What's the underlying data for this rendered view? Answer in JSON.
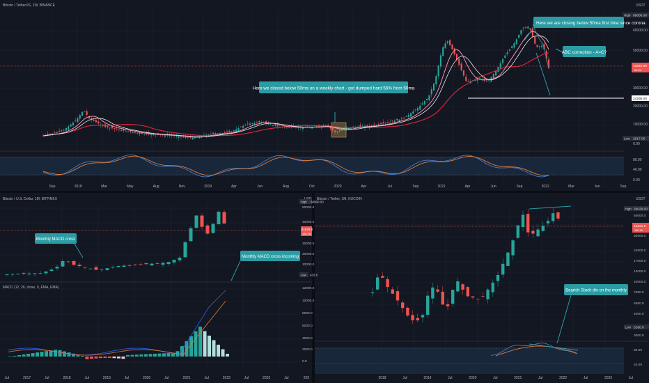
{
  "colors": {
    "background": "#131722",
    "grid": "#1e2230",
    "up": "#26a69a",
    "down": "#ef5350",
    "ma_red": "#d6253b",
    "ma_pink": "#f48fb1",
    "ma_white": "#e8e8e8",
    "callout": "#2b9ca3",
    "stoch_blue": "#4a78c4",
    "stoch_orange": "#e07b39",
    "macd_blue": "#2962ff",
    "band": "#1b2a40"
  },
  "top": {
    "title": "Bitcoin / TetherUS, 1W, BINANCE",
    "currency": "USDT",
    "price_labels": [
      "60000.00",
      "50000.00",
      "30000.00",
      "20000.00",
      "10000.00",
      "0.00"
    ],
    "high_tag": "High",
    "high_value": "69000.00",
    "current_price": "41640.09",
    "current_sub": "2d 0h",
    "level_value": "24295.00",
    "low_tag": "Low",
    "low_value": "2817.00",
    "osc_labels": [
      "80.00",
      "40.00",
      "0.00"
    ],
    "x_labels": [
      "Sep",
      "2018",
      "Mar",
      "May",
      "Aug",
      "Nov",
      "2019",
      "Apr",
      "Jun",
      "Aug",
      "Oct",
      "2020",
      "Apr",
      "Jul",
      "Sep",
      "2021",
      "Apr",
      "Jun",
      "Sep",
      "2022",
      "Mar",
      "Jun",
      "Sep"
    ],
    "callout_1": "Here we closed below 50ma on a weekly chart - got dumped hard 56% from 50ma",
    "callout_2": "Here we are closing below 50ma first time since corona",
    "callout_3": "ABC correction - A=C?"
  },
  "bottom_left": {
    "title": "Bitcoin / U.S. Dollar, 1M, BITFINEX",
    "currency": "USD",
    "high_tag": "High",
    "high_value": "68990.00",
    "price_labels": [
      "50000.0",
      "40000.0",
      "30000.0",
      "20000.0",
      "10000.0"
    ],
    "current_price": "41678.0",
    "current_sub": "18d 0h",
    "low_tag": "Low",
    "low_value": "433.0",
    "macd_title": "MACD (12, 26, close, 9, EMA, EMA)",
    "macd_labels": [
      "12000.0",
      "10000.0",
      "8000.0",
      "6000.0",
      "4000.0",
      "2000.0",
      "0.0"
    ],
    "x_labels": [
      "Jul",
      "2017",
      "Jul",
      "2018",
      "Jul",
      "2019",
      "Jul",
      "2020",
      "Jul",
      "2021",
      "Jul",
      "2022",
      "Jul",
      "2023",
      "Jul",
      "202"
    ],
    "callout_1": "Monthly MACD cross",
    "callout_2": "Monthly MACD cross incoming"
  },
  "bottom_right": {
    "title": "Bitcoin / Tether, 1M, KUCOIN",
    "currency": "USDT",
    "high_tag": "High",
    "high_value": "69028.00",
    "price_labels": [
      "50000.0",
      "40000.0",
      "30000.0",
      "23000.0",
      "17000.0",
      "13000.0",
      "10000.0",
      "7500.0",
      "5500.0",
      "4000.0",
      "3000.0"
    ],
    "current_price": "41621.5",
    "current_sub": "18d 0h",
    "low_tag": "Low",
    "low_value": "3160.0",
    "osc_labels": [
      "80.00",
      "40.00"
    ],
    "x_labels": [
      "2018",
      "Jul",
      "2019",
      "Jul",
      "2020",
      "Jul",
      "2021",
      "Jul",
      "2022",
      "Jul",
      "2023",
      "Jul"
    ],
    "callout_1": "Bearish Stoch div on the monthly"
  },
  "chart_data": [
    {
      "type": "line",
      "title": "Bitcoin / TetherUS, 1W, BINANCE",
      "xlabel": "",
      "ylabel": "",
      "x": [
        "2017-09",
        "2017-12",
        "2018-03",
        "2018-06",
        "2018-09",
        "2018-12",
        "2019-03",
        "2019-06",
        "2019-09",
        "2019-12",
        "2020-03",
        "2020-06",
        "2020-09",
        "2020-12",
        "2021-02",
        "2021-04",
        "2021-07",
        "2021-09",
        "2021-11",
        "2022-01"
      ],
      "series": [
        {
          "values": [
            4200,
            17000,
            9000,
            6500,
            6500,
            3500,
            4000,
            11500,
            8500,
            7200,
            5000,
            9400,
            10700,
            27000,
            52000,
            60000,
            32000,
            48000,
            67000,
            41640
          ]
        }
      ],
      "levels": [
        24295
      ],
      "ylim": [
        2817,
        69000
      ],
      "grid": true
    },
    {
      "type": "bar",
      "title": "MACD (12, 26, close, 9, EMA, EMA)",
      "x": [
        "2017-01",
        "2017-07",
        "2018-01",
        "2018-07",
        "2019-01",
        "2019-07",
        "2020-01",
        "2020-07",
        "2021-01",
        "2021-04",
        "2021-07",
        "2021-10",
        "2022-01"
      ],
      "values": [
        0,
        200,
        900,
        300,
        -500,
        -300,
        100,
        300,
        2200,
        3800,
        2000,
        900,
        -100
      ],
      "ylim": [
        -500,
        12000
      ]
    },
    {
      "type": "line",
      "title": "Bitcoin / Tether, 1M, KUCOIN",
      "x": [
        "2017-10",
        "2018-01",
        "2018-07",
        "2019-01",
        "2019-06",
        "2020-03",
        "2020-12",
        "2021-04",
        "2021-07",
        "2021-11",
        "2022-01"
      ],
      "series": [
        {
          "values": [
            6000,
            13000,
            7500,
            3600,
            11000,
            6500,
            29000,
            58000,
            35000,
            61000,
            41621.5
          ]
        }
      ],
      "ylim": [
        3160,
        69028
      ]
    }
  ]
}
